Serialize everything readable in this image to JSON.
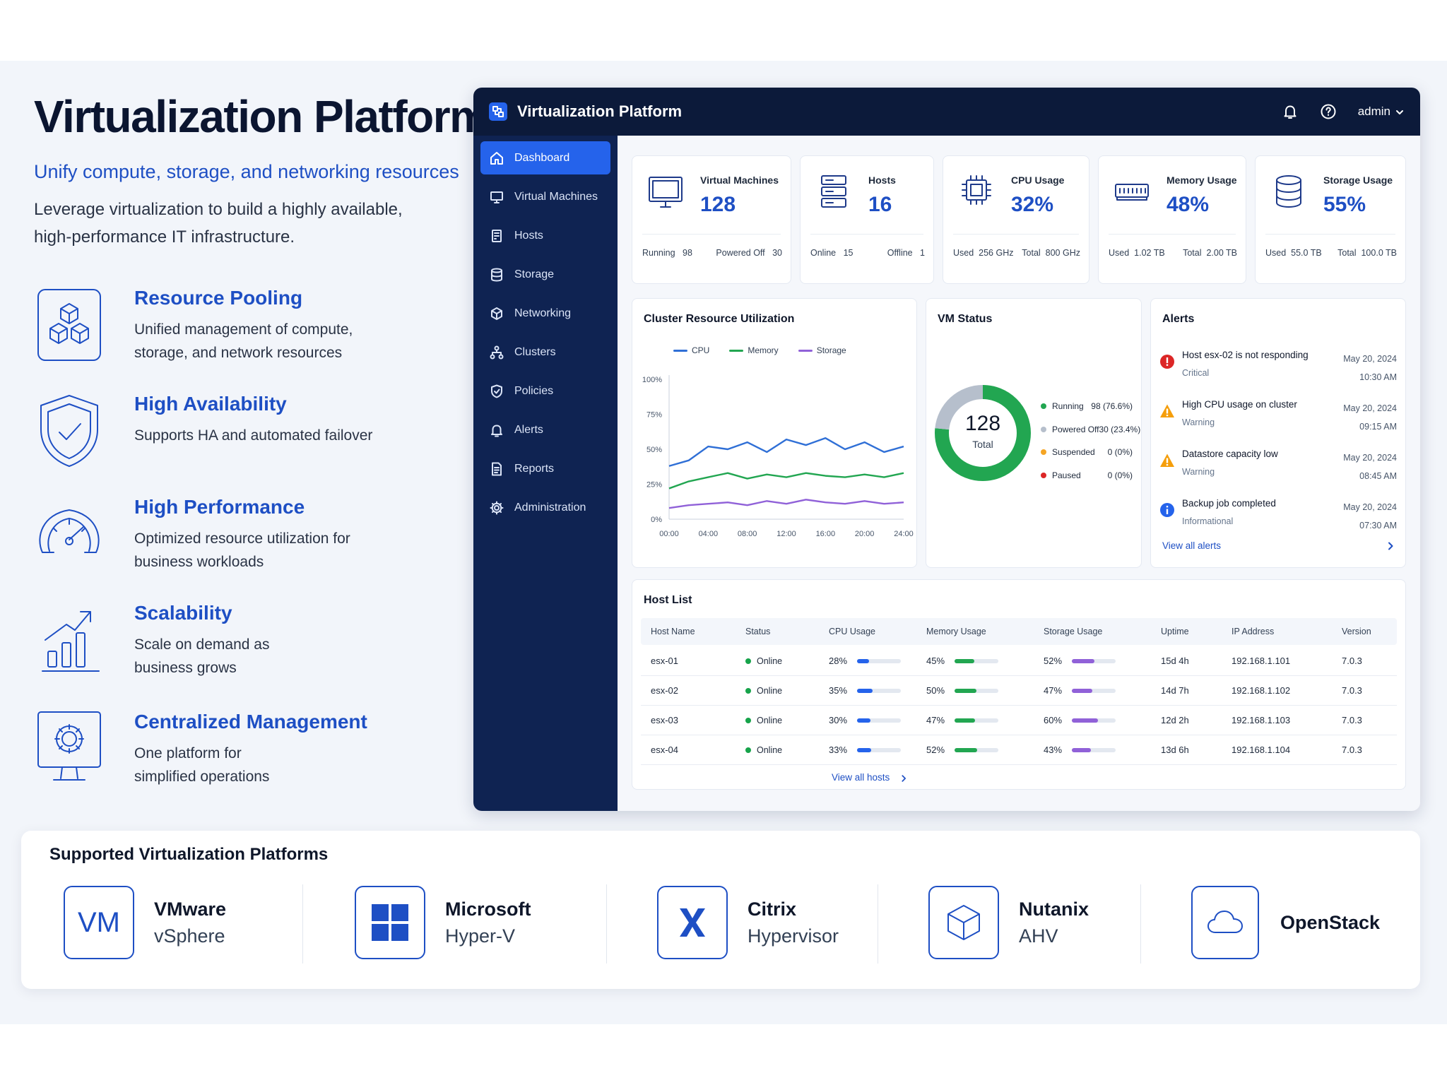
{
  "hero": {
    "title": "Virtualization Platform",
    "subtitle": "Unify compute, storage, and networking resources",
    "description_lines": [
      "Leverage virtualization to build a highly available,",
      "high-performance IT infrastructure."
    ]
  },
  "features": [
    {
      "title": "Resource Pooling",
      "lines": [
        "Unified management of compute,",
        "storage, and network resources"
      ],
      "icon": "cubes-icon"
    },
    {
      "title": "High Availability",
      "lines": [
        "Supports HA and automated failover"
      ],
      "icon": "shield-check-icon"
    },
    {
      "title": "High Performance",
      "lines": [
        "Optimized resource utilization for",
        "business workloads"
      ],
      "icon": "gauge-icon"
    },
    {
      "title": "Scalability",
      "lines": [
        "Scale on demand as",
        "business grows"
      ],
      "icon": "growth-chart-icon"
    },
    {
      "title": "Centralized Management",
      "lines": [
        "One platform for",
        "simplified operations"
      ],
      "icon": "monitor-gear-icon"
    }
  ],
  "app": {
    "title": "Virtualization Platform",
    "user": "admin",
    "nav": [
      {
        "label": "Dashboard",
        "icon": "home-icon",
        "active": true
      },
      {
        "label": "Virtual Machines",
        "icon": "monitor-icon"
      },
      {
        "label": "Hosts",
        "icon": "server-icon"
      },
      {
        "label": "Storage",
        "icon": "database-icon"
      },
      {
        "label": "Networking",
        "icon": "network-icon"
      },
      {
        "label": "Clusters",
        "icon": "clusters-icon"
      },
      {
        "label": "Policies",
        "icon": "shield-icon"
      },
      {
        "label": "Alerts",
        "icon": "bell-icon"
      },
      {
        "label": "Reports",
        "icon": "report-icon"
      },
      {
        "label": "Administration",
        "icon": "gear-icon"
      }
    ]
  },
  "stats": [
    {
      "label": "Virtual Machines",
      "value": "128",
      "foot": [
        [
          "Running",
          "98"
        ],
        [
          "Powered Off",
          "30"
        ]
      ],
      "icon": "monitor-icon"
    },
    {
      "label": "Hosts",
      "value": "16",
      "foot": [
        [
          "Online",
          "15"
        ],
        [
          "Offline",
          "1"
        ]
      ],
      "icon": "server-icon"
    },
    {
      "label": "CPU Usage",
      "value": "32%",
      "foot": [
        [
          "Used",
          "256 GHz"
        ],
        [
          "Total",
          "800 GHz"
        ]
      ],
      "icon": "cpu-icon"
    },
    {
      "label": "Memory Usage",
      "value": "48%",
      "foot": [
        [
          "Used",
          "1.02 TB"
        ],
        [
          "Total",
          "2.00 TB"
        ]
      ],
      "icon": "memory-icon"
    },
    {
      "label": "Storage Usage",
      "value": "55%",
      "foot": [
        [
          "Used",
          "55.0 TB"
        ],
        [
          "Total",
          "100.0 TB"
        ]
      ],
      "icon": "database-icon"
    }
  ],
  "chart_data": {
    "type": "line",
    "title": "Cluster Resource Utilization",
    "x": [
      "00:00",
      "02:00",
      "04:00",
      "06:00",
      "08:00",
      "10:00",
      "12:00",
      "14:00",
      "16:00",
      "18:00",
      "20:00",
      "22:00",
      "24:00"
    ],
    "x_ticks": [
      "00:00",
      "04:00",
      "08:00",
      "12:00",
      "16:00",
      "20:00",
      "24:00"
    ],
    "y_ticks": [
      "0%",
      "25%",
      "50%",
      "75%",
      "100%"
    ],
    "ylim": [
      0,
      100
    ],
    "grid": false,
    "legend": "top",
    "series": [
      {
        "name": "CPU",
        "color": "#2f6fd6",
        "values": [
          38,
          42,
          52,
          50,
          55,
          48,
          57,
          53,
          58,
          50,
          55,
          48,
          52
        ]
      },
      {
        "name": "Memory",
        "color": "#22a651",
        "values": [
          22,
          27,
          30,
          33,
          29,
          32,
          30,
          33,
          31,
          30,
          32,
          30,
          33
        ]
      },
      {
        "name": "Storage",
        "color": "#9061d8",
        "values": [
          8,
          10,
          11,
          12,
          10,
          13,
          11,
          14,
          12,
          11,
          13,
          11,
          12
        ]
      }
    ]
  },
  "vm_status": {
    "title": "VM Status",
    "total": "128",
    "total_label": "Total",
    "items": [
      {
        "label": "Running",
        "value": "98 (76.6%)",
        "count": 98,
        "color": "#22a651"
      },
      {
        "label": "Powered Off",
        "value": "30 (23.4%)",
        "count": 30,
        "color": "#b6bfcc"
      },
      {
        "label": "Suspended",
        "value": "0 (0%)",
        "count": 0,
        "color": "#f5a524"
      },
      {
        "label": "Paused",
        "value": "0 (0%)",
        "count": 0,
        "color": "#dc2626"
      }
    ]
  },
  "alerts": {
    "title": "Alerts",
    "items": [
      {
        "text": "Host esx-02 is not responding",
        "severity": "Critical",
        "date": "May 20, 2024",
        "time": "10:30 AM",
        "icon": "critical-icon",
        "color": "#dc2626"
      },
      {
        "text": "High CPU usage on cluster",
        "severity": "Warning",
        "date": "May 20, 2024",
        "time": "09:15 AM",
        "icon": "warning-icon",
        "color": "#f59e0b"
      },
      {
        "text": "Datastore capacity low",
        "severity": "Warning",
        "date": "May 20, 2024",
        "time": "08:45 AM",
        "icon": "warning-icon",
        "color": "#f59e0b"
      },
      {
        "text": "Backup job completed",
        "severity": "Informational",
        "date": "May 20, 2024",
        "time": "07:30 AM",
        "icon": "info-icon",
        "color": "#2563eb"
      }
    ],
    "link": "View all alerts"
  },
  "hosts": {
    "title": "Host List",
    "columns": [
      "Host Name",
      "Status",
      "CPU Usage",
      "Memory Usage",
      "Storage Usage",
      "Uptime",
      "IP Address",
      "Version"
    ],
    "rows": [
      {
        "name": "esx-01",
        "status": "Online",
        "cpu": "28%",
        "cpu_v": 0.28,
        "mem": "45%",
        "mem_v": 0.45,
        "sto": "52%",
        "sto_v": 0.52,
        "uptime": "15d 4h",
        "ip": "192.168.1.101",
        "version": "7.0.3"
      },
      {
        "name": "esx-02",
        "status": "Online",
        "cpu": "35%",
        "cpu_v": 0.35,
        "mem": "50%",
        "mem_v": 0.5,
        "sto": "47%",
        "sto_v": 0.47,
        "uptime": "14d 7h",
        "ip": "192.168.1.102",
        "version": "7.0.3"
      },
      {
        "name": "esx-03",
        "status": "Online",
        "cpu": "30%",
        "cpu_v": 0.3,
        "mem": "47%",
        "mem_v": 0.47,
        "sto": "60%",
        "sto_v": 0.6,
        "uptime": "12d 2h",
        "ip": "192.168.1.103",
        "version": "7.0.3"
      },
      {
        "name": "esx-04",
        "status": "Online",
        "cpu": "33%",
        "cpu_v": 0.33,
        "mem": "52%",
        "mem_v": 0.52,
        "sto": "43%",
        "sto_v": 0.43,
        "uptime": "13d 6h",
        "ip": "192.168.1.104",
        "version": "7.0.3"
      }
    ],
    "link": "View all hosts"
  },
  "platforms": {
    "title": "Supported Virtualization Platforms",
    "items": [
      {
        "name": "VMware",
        "sub": "vSphere",
        "icon": "vmware-icon",
        "glyph": "VM"
      },
      {
        "name": "Microsoft",
        "sub": "Hyper-V",
        "icon": "windows-icon"
      },
      {
        "name": "Citrix",
        "sub": "Hypervisor",
        "icon": "citrix-icon"
      },
      {
        "name": "Nutanix",
        "sub": "AHV",
        "icon": "cube-icon"
      },
      {
        "name": "OpenStack",
        "sub": "",
        "icon": "cloud-icon"
      }
    ]
  },
  "colors": {
    "accent": "#1e4fc4",
    "topbar": "#0c1a3a",
    "sidebar": "#0f2352",
    "active": "#2563eb",
    "success": "#22a651"
  }
}
